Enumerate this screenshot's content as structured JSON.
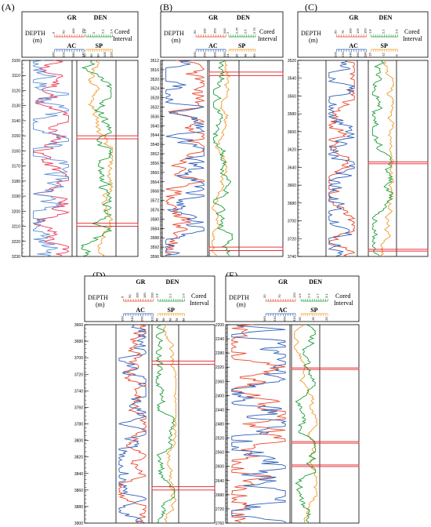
{
  "header": {
    "depth_label": "DEPTH",
    "depth_unit": "(m)",
    "gr": "GR",
    "ac": "AC",
    "den": "DEN",
    "sp": "SP",
    "cored_line1": "Cored",
    "cored_line2": "Interval"
  },
  "colors": {
    "gr": "#e8452a",
    "ac": "#2f5fb8",
    "den": "#1e9e3a",
    "sp": "#f09a2a",
    "cored": "#e0232a",
    "gr_a": "#e83a5a",
    "ac_a": "#5a8fd6"
  },
  "panels": [
    {
      "id": "A",
      "label": "(A)",
      "depth_ticks": [
        "3100",
        "3110",
        "3120",
        "3130",
        "3140",
        "3150",
        "3160",
        "3170",
        "3180",
        "3190",
        "3200",
        "3210",
        "3220",
        "3230"
      ],
      "depth_range": [
        3100,
        3230
      ],
      "gr_scale": [
        "0",
        "50",
        "100",
        "150"
      ],
      "ac_scale": [
        "160",
        "220",
        "280",
        "340"
      ],
      "den_scale": [
        "1.8",
        "2",
        "2.2",
        "2.4"
      ],
      "sp_scale": [
        "40",
        "60",
        "80",
        "100",
        "120"
      ],
      "cored_intervals": [
        [
          3150,
          3152
        ],
        [
          3208,
          3210
        ]
      ]
    },
    {
      "id": "B",
      "label": "(B)",
      "depth_ticks": [
        "3512",
        "3516",
        "3520",
        "3524",
        "3528",
        "3532",
        "3536",
        "3540",
        "3544",
        "3548",
        "3552",
        "3556",
        "3560",
        "3564",
        "3568",
        "3572",
        "3576",
        "3580",
        "3584",
        "3588",
        "3592",
        "3596"
      ],
      "depth_range": [
        3512,
        3596
      ],
      "gr_scale": [
        "50",
        "100",
        "150",
        "200"
      ],
      "ac_scale": [
        "200",
        "250",
        "300",
        "350"
      ],
      "den_scale": [
        "2",
        "2.25",
        "2.5",
        "2.75"
      ],
      "sp_scale": [
        "24",
        "36",
        "48",
        "60"
      ],
      "cored_intervals": [
        [
          3517,
          3518.5
        ],
        [
          3592,
          3593.5
        ]
      ]
    },
    {
      "id": "C",
      "label": "(C)",
      "depth_ticks": [
        "3520",
        "3540",
        "3560",
        "3580",
        "3600",
        "3620",
        "3640",
        "3660",
        "3680",
        "3700",
        "3720",
        "3740"
      ],
      "depth_range": [
        3520,
        3740
      ],
      "gr_scale": [
        "50",
        "75",
        "100",
        "125",
        "150"
      ],
      "ac_scale": [
        "200",
        "220",
        "240",
        "260",
        "280"
      ],
      "den_scale": [
        "1.8",
        "2.2",
        "2.6"
      ],
      "sp_scale": [
        "-16",
        "-12",
        "-8"
      ],
      "cored_intervals": [
        [
          3634,
          3636
        ],
        [
          3732,
          3734
        ]
      ]
    },
    {
      "id": "D",
      "label": "(D)",
      "depth_ticks": [
        "3660",
        "3680",
        "3700",
        "3720",
        "3740",
        "3760",
        "3780",
        "3800",
        "3820",
        "3840",
        "3860",
        "3880",
        "3900"
      ],
      "depth_range": [
        3660,
        3900
      ],
      "gr_scale": [
        "0",
        "50",
        "100",
        "150",
        "200"
      ],
      "ac_scale": [
        "160",
        "210",
        "260",
        "310"
      ],
      "den_scale": [
        "1.8",
        "2.2",
        "2.6"
      ],
      "sp_scale": [
        "48",
        "58",
        "68",
        "78",
        "88"
      ],
      "cored_intervals": [
        [
          3704,
          3708
        ],
        [
          3856,
          3860
        ]
      ]
    },
    {
      "id": "E",
      "label": "(E)",
      "depth_ticks": [
        "2200",
        "2240",
        "2280",
        "2320",
        "2360",
        "2400",
        "2440",
        "2480",
        "2520",
        "2560",
        "2600",
        "2640",
        "2680",
        "2720",
        "2760"
      ],
      "depth_range": [
        2200,
        2760
      ],
      "gr_scale": [
        "20",
        "70",
        "120"
      ],
      "ac_scale": [
        "160",
        "210",
        "260",
        "310"
      ],
      "den_scale": [
        "1.9",
        "2.3",
        "2.7",
        "3.1"
      ],
      "sp_scale": [
        "-90",
        "-30",
        "-20"
      ],
      "cored_intervals": [
        [
          2322,
          2326
        ],
        [
          2530,
          2534
        ],
        [
          2596,
          2600
        ]
      ]
    }
  ]
}
